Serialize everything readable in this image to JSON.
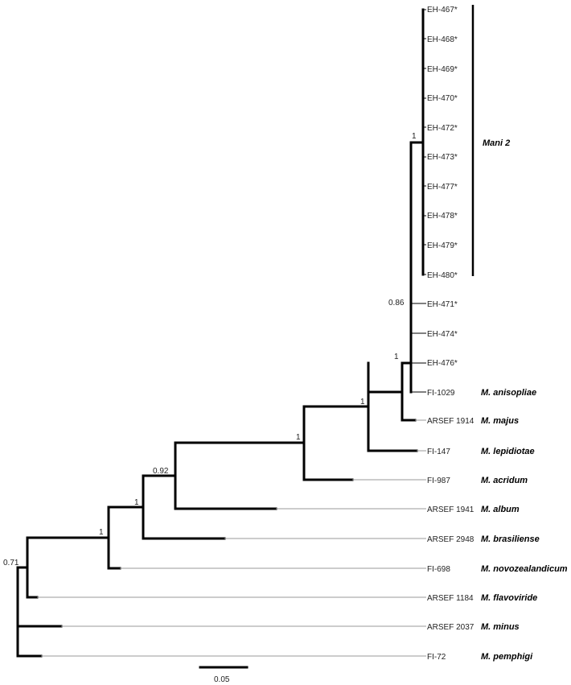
{
  "tree": {
    "clade_label": "Mani 2",
    "leaves": [
      {
        "name": "EH-467*",
        "species": ""
      },
      {
        "name": "EH-468*",
        "species": ""
      },
      {
        "name": "EH-469*",
        "species": ""
      },
      {
        "name": "EH-470*",
        "species": ""
      },
      {
        "name": "EH-472*",
        "species": ""
      },
      {
        "name": "EH-473*",
        "species": ""
      },
      {
        "name": "EH-477*",
        "species": ""
      },
      {
        "name": "EH-478*",
        "species": ""
      },
      {
        "name": "EH-479*",
        "species": ""
      },
      {
        "name": "EH-480*",
        "species": ""
      },
      {
        "name": "EH-471*",
        "species": ""
      },
      {
        "name": "EH-474*",
        "species": ""
      },
      {
        "name": "EH-476*",
        "species": ""
      },
      {
        "name": "FI-1029",
        "species": "M. anisopliae"
      },
      {
        "name": "ARSEF 1914",
        "species": "M. majus"
      },
      {
        "name": "FI-147",
        "species": "M. lepidiotae"
      },
      {
        "name": "FI-987",
        "species": "M. acridum"
      },
      {
        "name": "ARSEF 1941",
        "species": "M. album"
      },
      {
        "name": "ARSEF 2948",
        "species": "M. brasiliense"
      },
      {
        "name": "FI-698",
        "species": "M. novozealandicum"
      },
      {
        "name": "ARSEF 1184",
        "species": "M. flavoviride"
      },
      {
        "name": "ARSEF 2037",
        "species": "M. minus"
      },
      {
        "name": "FI-72",
        "species": "M. pemphigi"
      }
    ],
    "support_values": [
      "1",
      "0.86",
      "1",
      "1",
      "1",
      "0.92",
      "1",
      "1",
      "0.71"
    ],
    "scale_bar_label": "0.05"
  }
}
